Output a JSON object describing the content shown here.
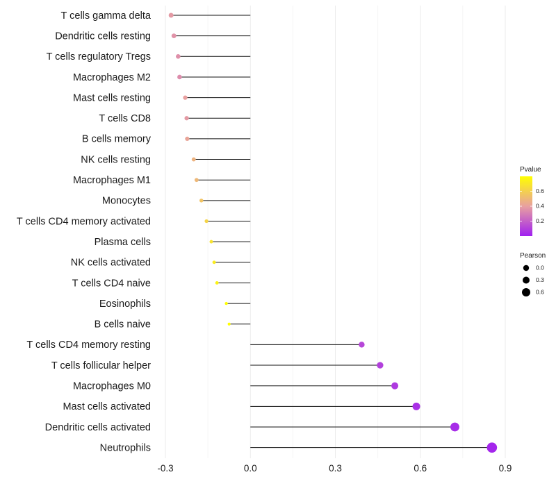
{
  "chart_data": {
    "type": "lollipop",
    "title": "",
    "xlabel": "",
    "ylabel": "",
    "xlim": [
      -0.3,
      0.9
    ],
    "xticks": [
      "-0.3",
      "0.0",
      "0.3",
      "0.6",
      "0.9"
    ],
    "xtick_values": [
      -0.3,
      0.0,
      0.3,
      0.6,
      0.9
    ],
    "grid": true,
    "categories": [
      "T cells gamma delta",
      "Dendritic cells resting",
      "T cells regulatory  Tregs",
      "Macrophages M2",
      "Mast cells resting",
      "T cells CD8",
      "B cells memory",
      "NK cells resting",
      "Macrophages M1",
      "Monocytes",
      "T cells CD4 memory activated",
      "Plasma cells",
      "NK cells activated",
      "T cells CD4 naive",
      "Eosinophils",
      "B cells naive",
      "T cells CD4 memory resting",
      "T cells follicular helper",
      "Macrophages M0",
      "Mast cells activated",
      "Dendritic cells activated",
      "Neutrophils"
    ],
    "values": [
      -0.28,
      -0.27,
      -0.255,
      -0.25,
      -0.23,
      -0.225,
      -0.223,
      -0.2,
      -0.19,
      -0.173,
      -0.155,
      -0.138,
      -0.128,
      -0.118,
      -0.085,
      -0.075,
      0.393,
      0.458,
      0.51,
      0.586,
      0.722,
      0.853
    ],
    "pvalues": [
      0.38,
      0.36,
      0.35,
      0.34,
      0.4,
      0.38,
      0.42,
      0.48,
      0.5,
      0.55,
      0.62,
      0.68,
      0.72,
      0.75,
      0.82,
      0.85,
      0.12,
      0.1,
      0.08,
      0.05,
      0.04,
      0.02
    ],
    "legend": {
      "position": "right",
      "color": {
        "title": "Pvalue",
        "ticks": [
          "0.6",
          "0.4",
          "0.2"
        ],
        "tick_values": [
          0.6,
          0.4,
          0.2
        ],
        "range": [
          0.0,
          0.8
        ],
        "low_color": "#A020F0",
        "mid_color": "#E8A0A0",
        "high_color": "#FFFF00"
      },
      "size": {
        "title": "Pearson",
        "labels": [
          "0.0",
          "0.3",
          "0.6"
        ],
        "values": [
          0.0,
          0.3,
          0.6
        ]
      }
    }
  }
}
